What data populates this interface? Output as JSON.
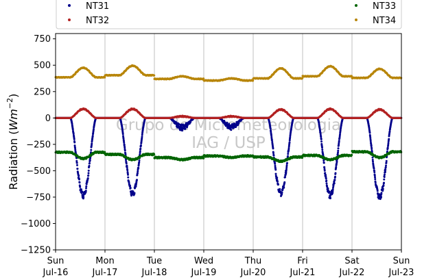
{
  "chart_data": {
    "type": "scatter",
    "ylabel_parts": {
      "text": "Radiation (",
      "math": "Wm",
      "sup": "−2",
      "close": ")"
    },
    "ylim": [
      -1250,
      800
    ],
    "yticks": [
      750,
      500,
      250,
      0,
      -250,
      -500,
      -750,
      -1000,
      -1250
    ],
    "ytick_labels": [
      "750",
      "500",
      "250",
      "0",
      "−250",
      "−500",
      "−750",
      "−1000",
      "−1250"
    ],
    "xlim_days": [
      0,
      7
    ],
    "xticks": [
      {
        "day": "Sun",
        "date": "Jul-16"
      },
      {
        "day": "Mon",
        "date": "Jul-17"
      },
      {
        "day": "Tue",
        "date": "Jul-18"
      },
      {
        "day": "Wed",
        "date": "Jul-19"
      },
      {
        "day": "Thu",
        "date": "Jul-20"
      },
      {
        "day": "Fri",
        "date": "Jul-21"
      },
      {
        "day": "Sat",
        "date": "Jul-22"
      },
      {
        "day": "Sun",
        "date": "Jul-23"
      }
    ],
    "grid": "vertical",
    "legend_position": "top",
    "watermark": [
      "Grupo de Micrometeorologia",
      "IAG / USP"
    ],
    "series": [
      {
        "name": "NT31",
        "color": "#00008b",
        "baseline": 0,
        "daily_amplitude": [
          -735,
          -720,
          -90,
          -85,
          -710,
          -735,
          -745
        ]
      },
      {
        "name": "NT32",
        "color": "#b22222",
        "baseline": 0,
        "daily_amplitude": [
          85,
          85,
          15,
          15,
          80,
          85,
          80
        ]
      },
      {
        "name": "NT33",
        "color": "#006400",
        "daily_base": [
          -325,
          -345,
          -375,
          -360,
          -370,
          -355,
          -320
        ],
        "daily_dip": [
          -60,
          -50,
          -20,
          -15,
          -40,
          -40,
          -55
        ]
      },
      {
        "name": "NT34",
        "color": "#b8860b",
        "daily_base": [
          385,
          405,
          370,
          355,
          375,
          395,
          380
        ],
        "daily_bump": [
          90,
          90,
          25,
          20,
          95,
          95,
          85
        ]
      }
    ]
  }
}
